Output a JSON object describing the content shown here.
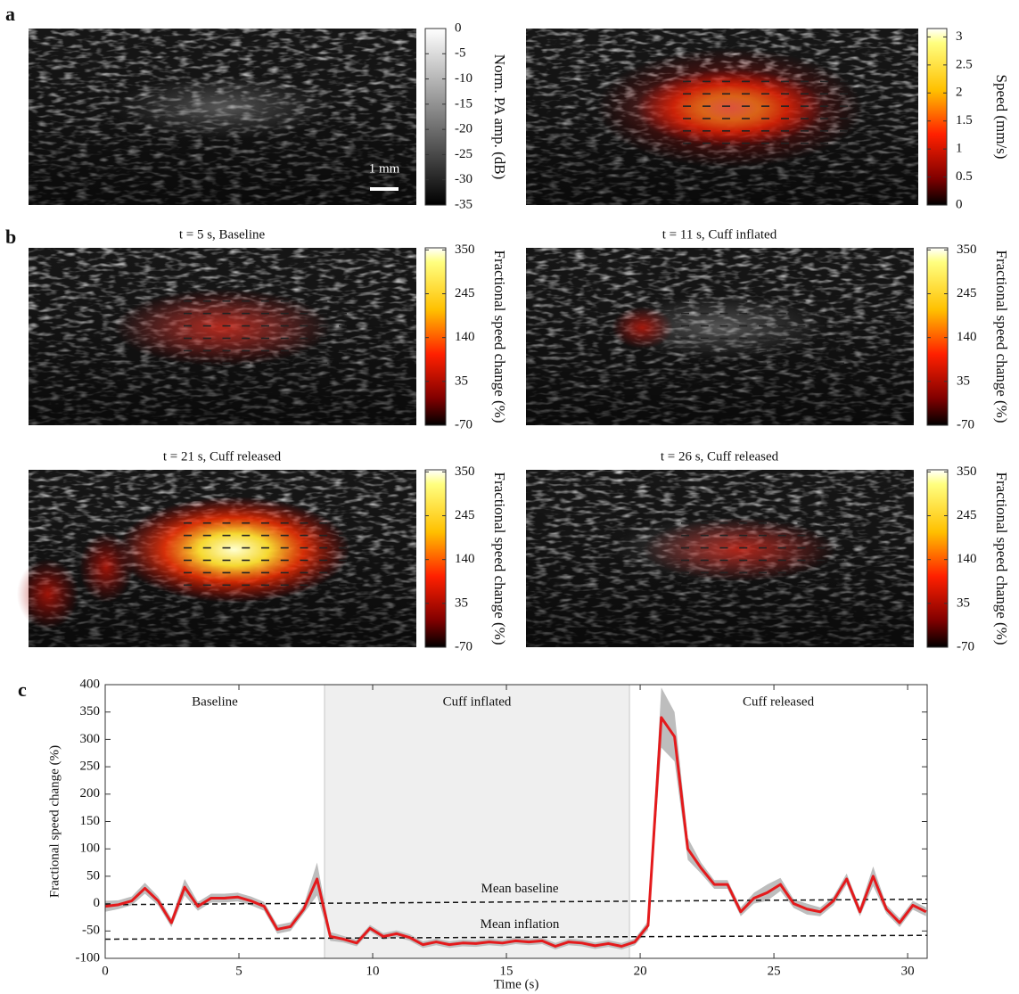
{
  "panel_labels": [
    "a",
    "b",
    "c"
  ],
  "panel_a": {
    "scale_bar": "1 mm",
    "colorbars": [
      {
        "label": "Norm. PA amp. (dB)",
        "colormap": "gray",
        "lim": [
          -35,
          0
        ],
        "ticks": [
          0,
          -5,
          -10,
          -15,
          -20,
          -25,
          -30,
          -35
        ]
      },
      {
        "label": "Speed (mm/s)",
        "colormap": "hot",
        "lim": [
          0,
          3.15
        ],
        "ticks": [
          3,
          2.5,
          2,
          1.5,
          1,
          0.5,
          0
        ]
      }
    ]
  },
  "panel_b": {
    "images": [
      {
        "title": "t = 5 s, Baseline"
      },
      {
        "title": "t = 11 s, Cuff inflated"
      },
      {
        "title": "t = 21 s, Cuff released"
      },
      {
        "title": "t = 26 s, Cuff released"
      }
    ],
    "colorbar": {
      "label": "Fractional speed change (%)",
      "colormap": "hot",
      "lim": [
        -70,
        355
      ],
      "ticks": [
        350,
        245,
        140,
        35,
        -70
      ]
    }
  },
  "chart_data": {
    "type": "line",
    "x_label": "Time (s)",
    "y_label": "Fractional speed change (%)",
    "xlim": [
      0,
      30.73
    ],
    "xticks": [
      0,
      5,
      10,
      15,
      20,
      25,
      30
    ],
    "ylim": [
      -100,
      400
    ],
    "yticks": [
      -100,
      -50,
      0,
      50,
      100,
      150,
      200,
      250,
      300,
      350,
      400
    ],
    "color": "#e41a1c",
    "band_color": "#bdbdbd",
    "x": [
      0,
      0.495,
      0.99,
      1.485,
      1.98,
      2.475,
      2.97,
      3.465,
      3.96,
      4.455,
      4.95,
      5.445,
      5.94,
      6.435,
      6.93,
      7.425,
      7.92,
      8.415,
      8.91,
      9.405,
      9.9,
      10.395,
      10.89,
      11.385,
      11.88,
      12.375,
      12.87,
      13.365,
      13.86,
      14.355,
      14.85,
      15.345,
      15.84,
      16.335,
      16.83,
      17.325,
      17.82,
      18.315,
      18.81,
      19.305,
      19.8,
      20.295,
      20.79,
      21.285,
      21.78,
      22.275,
      22.77,
      23.265,
      23.76,
      24.255,
      24.75,
      25.245,
      25.74,
      26.235,
      26.73,
      27.225,
      27.72,
      28.215,
      28.71,
      29.205,
      29.7,
      30.195,
      30.69
    ],
    "values": [
      -5,
      -2,
      5,
      28,
      5,
      -35,
      30,
      -5,
      10,
      10,
      12,
      5,
      -5,
      -47,
      -42,
      -10,
      45,
      -60,
      -65,
      -72,
      -45,
      -60,
      -55,
      -62,
      -75,
      -70,
      -75,
      -72,
      -73,
      -70,
      -72,
      -68,
      -70,
      -68,
      -78,
      -70,
      -72,
      -77,
      -73,
      -78,
      -70,
      -40,
      340,
      305,
      100,
      65,
      35,
      35,
      -15,
      10,
      20,
      35,
      0,
      -10,
      -15,
      5,
      45,
      -15,
      50,
      -10,
      -35,
      -3,
      -15
    ],
    "errors": [
      10,
      8,
      8,
      10,
      8,
      8,
      15,
      8,
      8,
      8,
      8,
      8,
      8,
      8,
      8,
      8,
      30,
      8,
      6,
      6,
      6,
      6,
      6,
      6,
      6,
      6,
      6,
      6,
      6,
      6,
      6,
      6,
      6,
      6,
      6,
      6,
      6,
      6,
      6,
      6,
      6,
      8,
      55,
      45,
      20,
      10,
      8,
      8,
      8,
      10,
      15,
      12,
      8,
      10,
      8,
      8,
      10,
      8,
      18,
      8,
      8,
      8,
      8
    ],
    "regions": [
      {
        "label": "Baseline",
        "xrange": [
          0,
          8.2
        ],
        "shaded": false
      },
      {
        "label": "Cuff inflated",
        "xrange": [
          8.2,
          19.6
        ],
        "shaded": true
      },
      {
        "label": "Cuff released",
        "xrange": [
          19.6,
          30.73
        ],
        "shaded": false
      }
    ],
    "mean_lines": [
      {
        "label": "Mean baseline",
        "values": [
          -2,
          8
        ]
      },
      {
        "label": "Mean inflation",
        "values": [
          -65,
          -58
        ]
      }
    ]
  }
}
